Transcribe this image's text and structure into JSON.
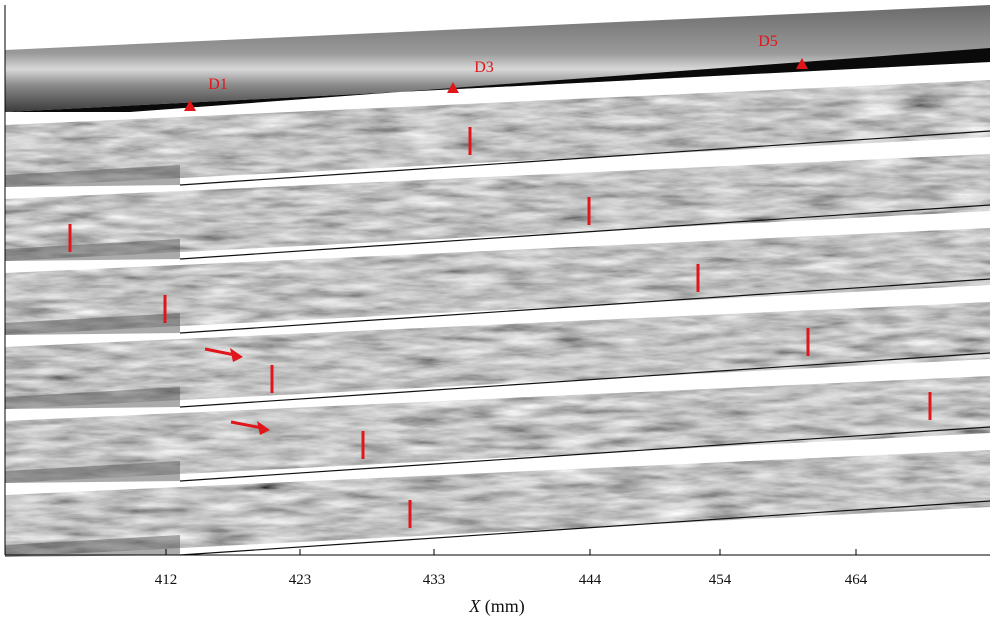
{
  "figure": {
    "annotations": [
      "D1",
      "D3",
      "D5"
    ],
    "x_axis": {
      "ticks": [
        "412",
        "423",
        "433",
        "444",
        "454",
        "464"
      ],
      "label_symbol": "X",
      "label_unit": "(mm)"
    }
  }
}
